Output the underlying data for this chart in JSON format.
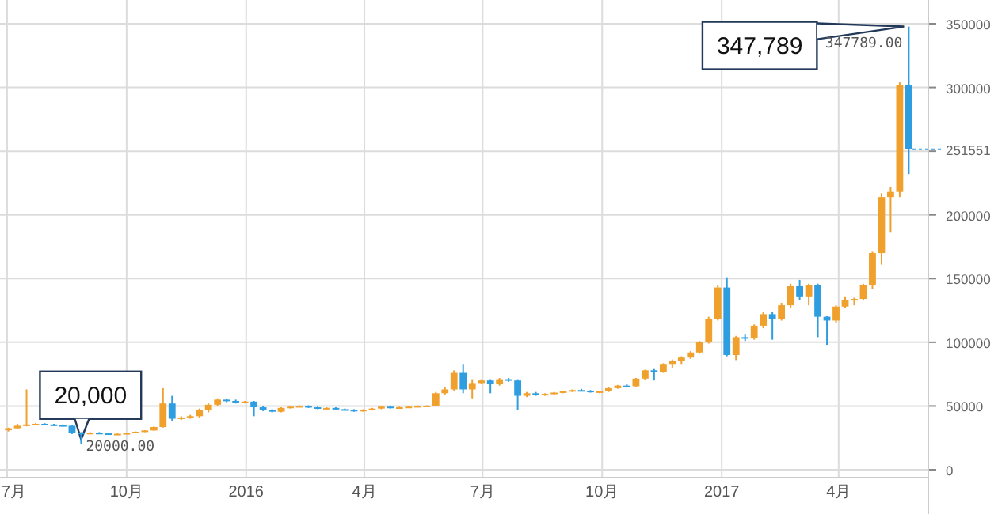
{
  "chart_data": {
    "type": "candlestick",
    "x": [
      "2015-07-02",
      "2015-07-09",
      "2015-07-16",
      "2015-07-23",
      "2015-07-30",
      "2015-08-06",
      "2015-08-13",
      "2015-08-20",
      "2015-08-27",
      "2015-09-03",
      "2015-09-10",
      "2015-09-17",
      "2015-09-24",
      "2015-10-01",
      "2015-10-08",
      "2015-10-15",
      "2015-10-22",
      "2015-10-29",
      "2015-11-05",
      "2015-11-12",
      "2015-11-19",
      "2015-11-26",
      "2015-12-03",
      "2015-12-10",
      "2015-12-17",
      "2015-12-24",
      "2015-12-31",
      "2016-01-07",
      "2016-01-14",
      "2016-01-21",
      "2016-01-28",
      "2016-02-04",
      "2016-02-11",
      "2016-02-18",
      "2016-02-25",
      "2016-03-03",
      "2016-03-10",
      "2016-03-17",
      "2016-03-24",
      "2016-03-31",
      "2016-04-07",
      "2016-04-14",
      "2016-04-21",
      "2016-04-28",
      "2016-05-05",
      "2016-05-12",
      "2016-05-19",
      "2016-05-26",
      "2016-06-02",
      "2016-06-09",
      "2016-06-16",
      "2016-06-23",
      "2016-06-30",
      "2016-07-07",
      "2016-07-14",
      "2016-07-21",
      "2016-07-28",
      "2016-08-04",
      "2016-08-11",
      "2016-08-18",
      "2016-08-25",
      "2016-09-01",
      "2016-09-08",
      "2016-09-15",
      "2016-09-22",
      "2016-09-29",
      "2016-10-06",
      "2016-10-13",
      "2016-10-20",
      "2016-10-27",
      "2016-11-03",
      "2016-11-10",
      "2016-11-17",
      "2016-11-24",
      "2016-12-01",
      "2016-12-08",
      "2016-12-15",
      "2016-12-22",
      "2016-12-29",
      "2017-01-05",
      "2017-01-12",
      "2017-01-19",
      "2017-01-26",
      "2017-02-02",
      "2017-02-09",
      "2017-02-16",
      "2017-02-23",
      "2017-03-02",
      "2017-03-09",
      "2017-03-16",
      "2017-03-23",
      "2017-03-30",
      "2017-04-06",
      "2017-04-13",
      "2017-04-20",
      "2017-04-27",
      "2017-05-04",
      "2017-05-11",
      "2017-05-18",
      "2017-05-25"
    ],
    "ohlc": [
      [
        31000,
        33000,
        30000,
        32500
      ],
      [
        32500,
        36000,
        32000,
        34500
      ],
      [
        34500,
        63000,
        34000,
        35500
      ],
      [
        35500,
        36500,
        35000,
        36000
      ],
      [
        36000,
        36500,
        35000,
        35500
      ],
      [
        35500,
        36000,
        34500,
        35000
      ],
      [
        35000,
        35500,
        34000,
        34500
      ],
      [
        34500,
        35000,
        28000,
        29000
      ],
      [
        29000,
        29500,
        20000,
        28500
      ],
      [
        28500,
        29500,
        28000,
        29000
      ],
      [
        29000,
        29500,
        28000,
        28500
      ],
      [
        28500,
        29000,
        27500,
        28000
      ],
      [
        28000,
        28500,
        27500,
        28200
      ],
      [
        28200,
        29000,
        28000,
        28800
      ],
      [
        28800,
        30000,
        28500,
        29800
      ],
      [
        29800,
        31000,
        29500,
        30800
      ],
      [
        30800,
        34000,
        30500,
        33500
      ],
      [
        33500,
        64000,
        33000,
        52000
      ],
      [
        52000,
        58000,
        38000,
        40000
      ],
      [
        40000,
        42000,
        39000,
        41000
      ],
      [
        41000,
        43000,
        40000,
        42000
      ],
      [
        42000,
        48000,
        41000,
        47000
      ],
      [
        47000,
        52000,
        45000,
        51000
      ],
      [
        51000,
        56000,
        50000,
        55000
      ],
      [
        55000,
        56000,
        53000,
        54000
      ],
      [
        54000,
        55000,
        52000,
        53000
      ],
      [
        53000,
        54000,
        52000,
        53500
      ],
      [
        53500,
        54000,
        42000,
        49000
      ],
      [
        49000,
        50000,
        46000,
        47000
      ],
      [
        47000,
        47500,
        45000,
        45500
      ],
      [
        45500,
        49000,
        45000,
        48500
      ],
      [
        48500,
        50000,
        48000,
        49500
      ],
      [
        49500,
        50500,
        49000,
        50000
      ],
      [
        50000,
        50500,
        48500,
        49000
      ],
      [
        49000,
        49500,
        47500,
        48000
      ],
      [
        48000,
        49000,
        47500,
        48500
      ],
      [
        48500,
        49000,
        47000,
        47500
      ],
      [
        47500,
        48000,
        46500,
        47000
      ],
      [
        47000,
        47500,
        45500,
        46000
      ],
      [
        46000,
        47500,
        45500,
        47000
      ],
      [
        47000,
        48500,
        46500,
        48000
      ],
      [
        48000,
        50000,
        47500,
        49500
      ],
      [
        49500,
        50000,
        48000,
        48500
      ],
      [
        48500,
        49500,
        48000,
        49000
      ],
      [
        49000,
        50000,
        48500,
        49500
      ],
      [
        49500,
        50500,
        49000,
        50000
      ],
      [
        50000,
        50500,
        49500,
        50300
      ],
      [
        50300,
        61000,
        50000,
        60000
      ],
      [
        60000,
        65000,
        59000,
        63000
      ],
      [
        63000,
        78000,
        62000,
        76000
      ],
      [
        76000,
        83000,
        60000,
        63000
      ],
      [
        63000,
        71000,
        56000,
        68000
      ],
      [
        68000,
        71000,
        67000,
        70000
      ],
      [
        70000,
        71000,
        60000,
        67000
      ],
      [
        67000,
        72000,
        66000,
        71000
      ],
      [
        71000,
        72000,
        69000,
        70000
      ],
      [
        70000,
        71000,
        47000,
        58000
      ],
      [
        58000,
        61000,
        57000,
        60000
      ],
      [
        60000,
        61000,
        58000,
        59000
      ],
      [
        59000,
        60000,
        58000,
        59500
      ],
      [
        59500,
        61000,
        59000,
        60500
      ],
      [
        60500,
        62000,
        60000,
        61500
      ],
      [
        61500,
        63000,
        61000,
        62500
      ],
      [
        62500,
        63500,
        61500,
        62000
      ],
      [
        62000,
        62500,
        60500,
        61000
      ],
      [
        61000,
        62000,
        60000,
        61500
      ],
      [
        61500,
        64500,
        61000,
        64000
      ],
      [
        64000,
        66500,
        63500,
        66000
      ],
      [
        66000,
        67000,
        64500,
        65500
      ],
      [
        65500,
        72000,
        65000,
        71500
      ],
      [
        71500,
        78500,
        70500,
        78000
      ],
      [
        78000,
        79000,
        70000,
        76500
      ],
      [
        76500,
        83500,
        76000,
        83000
      ],
      [
        83000,
        86500,
        80000,
        85500
      ],
      [
        85500,
        89000,
        83000,
        88000
      ],
      [
        88000,
        93000,
        87000,
        92000
      ],
      [
        92000,
        101000,
        91000,
        100000
      ],
      [
        100000,
        120000,
        99000,
        118000
      ],
      [
        118000,
        145000,
        117000,
        143000
      ],
      [
        143000,
        151000,
        89000,
        90000
      ],
      [
        90000,
        105000,
        86000,
        104000
      ],
      [
        104000,
        106000,
        101000,
        103000
      ],
      [
        103000,
        114000,
        102000,
        113000
      ],
      [
        113000,
        124000,
        111000,
        122000
      ],
      [
        122000,
        124000,
        102000,
        118000
      ],
      [
        118000,
        131000,
        117000,
        129000
      ],
      [
        129000,
        146000,
        127000,
        144000
      ],
      [
        144000,
        149000,
        133000,
        136000
      ],
      [
        136000,
        146000,
        129000,
        145000
      ],
      [
        145000,
        146000,
        104000,
        120000
      ],
      [
        120000,
        121000,
        98000,
        117000
      ],
      [
        117000,
        129000,
        115000,
        128000
      ],
      [
        128000,
        136000,
        127000,
        133000
      ],
      [
        133000,
        135000,
        129000,
        134000
      ],
      [
        134000,
        146000,
        133000,
        145000
      ],
      [
        145000,
        171000,
        142000,
        170000
      ],
      [
        170000,
        217000,
        161000,
        214000
      ],
      [
        214000,
        222000,
        186000,
        218000
      ],
      [
        218000,
        304000,
        214000,
        302000
      ],
      [
        302000,
        347789,
        232000,
        251551
      ]
    ],
    "colors": [
      "#f0a02c",
      "#f0a02c",
      "#f0a02c",
      "#f0a02c",
      "#2f9ee0",
      "#2f9ee0",
      "#2f9ee0",
      "#2f9ee0",
      "#2f9ee0",
      "#f0a02c",
      "#2f9ee0",
      "#2f9ee0",
      "#f0a02c",
      "#f0a02c",
      "#f0a02c",
      "#f0a02c",
      "#f0a02c",
      "#f0a02c",
      "#2f9ee0",
      "#f0a02c",
      "#f0a02c",
      "#f0a02c",
      "#f0a02c",
      "#f0a02c",
      "#2f9ee0",
      "#2f9ee0",
      "#f0a02c",
      "#2f9ee0",
      "#2f9ee0",
      "#2f9ee0",
      "#f0a02c",
      "#f0a02c",
      "#f0a02c",
      "#2f9ee0",
      "#2f9ee0",
      "#f0a02c",
      "#2f9ee0",
      "#2f9ee0",
      "#2f9ee0",
      "#f0a02c",
      "#f0a02c",
      "#f0a02c",
      "#2f9ee0",
      "#f0a02c",
      "#f0a02c",
      "#f0a02c",
      "#f0a02c",
      "#f0a02c",
      "#f0a02c",
      "#f0a02c",
      "#2f9ee0",
      "#f0a02c",
      "#f0a02c",
      "#2f9ee0",
      "#f0a02c",
      "#2f9ee0",
      "#2f9ee0",
      "#f0a02c",
      "#2f9ee0",
      "#f0a02c",
      "#f0a02c",
      "#f0a02c",
      "#f0a02c",
      "#2f9ee0",
      "#2f9ee0",
      "#f0a02c",
      "#f0a02c",
      "#f0a02c",
      "#2f9ee0",
      "#f0a02c",
      "#f0a02c",
      "#2f9ee0",
      "#f0a02c",
      "#f0a02c",
      "#f0a02c",
      "#f0a02c",
      "#f0a02c",
      "#f0a02c",
      "#f0a02c",
      "#2f9ee0",
      "#f0a02c",
      "#2f9ee0",
      "#f0a02c",
      "#f0a02c",
      "#2f9ee0",
      "#f0a02c",
      "#f0a02c",
      "#2f9ee0",
      "#f0a02c",
      "#2f9ee0",
      "#2f9ee0",
      "#f0a02c",
      "#f0a02c",
      "#f0a02c",
      "#f0a02c",
      "#f0a02c",
      "#f0a02c",
      "#f0a02c",
      "#f0a02c",
      "#2f9ee0"
    ],
    "xlim": [
      "2015-06-28",
      "2017-06-09"
    ],
    "xticks": [
      {
        "value": "2015-07-01",
        "label": "7月"
      },
      {
        "value": "2015-10-01",
        "label": "10月"
      },
      {
        "value": "2016-01-01",
        "label": "2016"
      },
      {
        "value": "2016-04-01",
        "label": "4月"
      },
      {
        "value": "2016-07-01",
        "label": "7月"
      },
      {
        "value": "2016-10-01",
        "label": "10月"
      },
      {
        "value": "2017-01-01",
        "label": "2017"
      },
      {
        "value": "2017-04-01",
        "label": "4月"
      }
    ],
    "ylim": [
      0,
      350000
    ],
    "yticks": [
      0,
      50000,
      100000,
      150000,
      200000,
      {
        "value": 250000,
        "label": null
      },
      300000,
      350000
    ],
    "grid": true,
    "ref_lines": [
      {
        "axis": "y",
        "value": 251551,
        "label": "251551",
        "color": "#2f9ee0",
        "line_style": "dotted"
      }
    ],
    "annotations": [
      {
        "text": "20,000",
        "x": "2015-08-27",
        "y": 20000
      },
      {
        "text": "20000.00",
        "x": "2015-08-27",
        "y": 20000
      },
      {
        "text": "347,789",
        "x": "2017-05-25",
        "y": 347789
      },
      {
        "text": "347789.00",
        "x": "2017-05-25",
        "y": 347789
      }
    ]
  }
}
